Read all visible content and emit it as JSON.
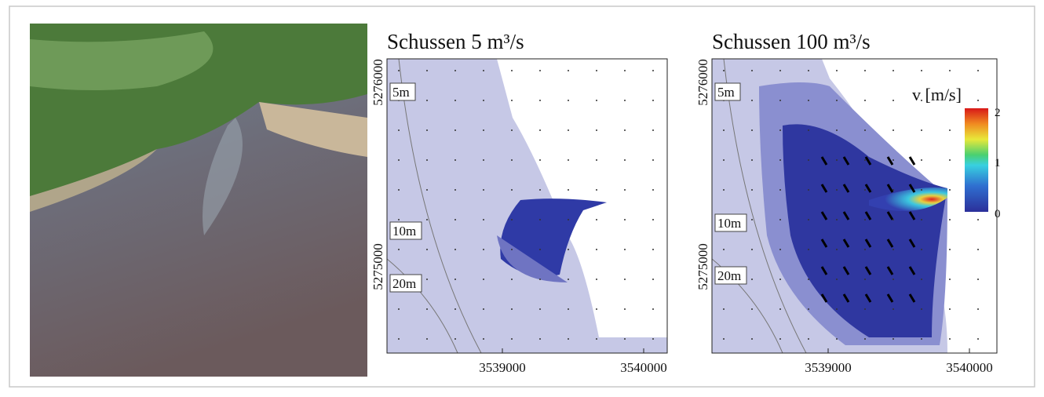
{
  "panels": [
    {
      "title": "Schussen 5 m³/s",
      "x_ticks": [
        3539000,
        3540000
      ],
      "y_ticks": [
        5276000,
        5275000
      ],
      "depth_labels": [
        "5m",
        "10m",
        "20m"
      ]
    },
    {
      "title": "Schussen 100 m³/s",
      "x_ticks": [
        3539000,
        3540000
      ],
      "y_ticks": [
        5276000,
        5275000
      ],
      "depth_labels": [
        "5m",
        "10m",
        "20m"
      ],
      "colorbar": {
        "label": "v [m/s]",
        "ticks": [
          2,
          1,
          0
        ]
      }
    }
  ]
}
